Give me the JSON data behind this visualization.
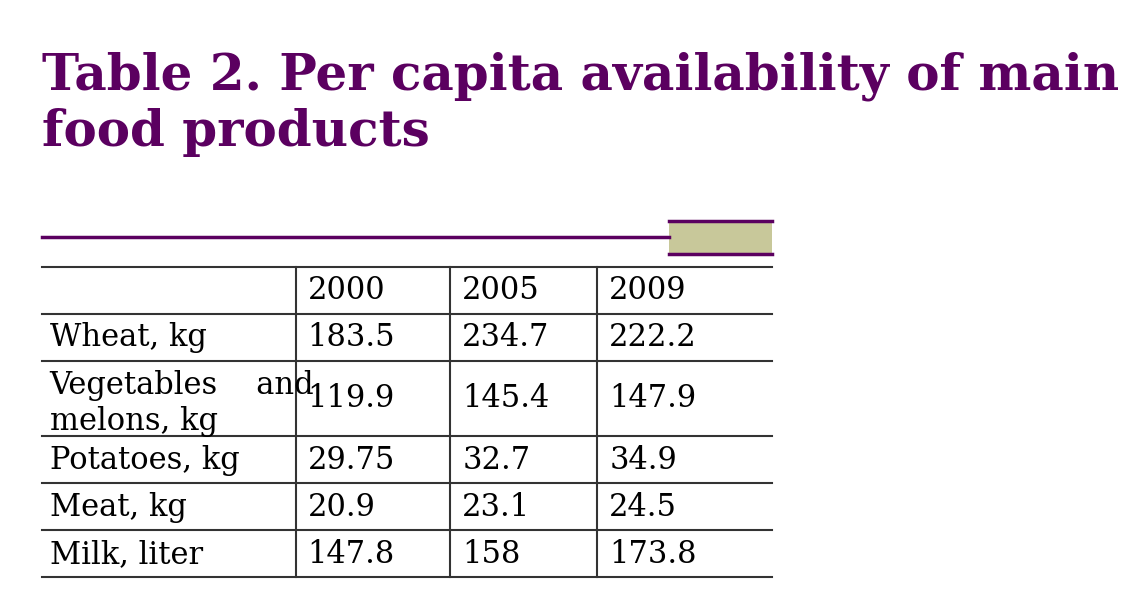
{
  "title": "Table 2. Per capita availability of main\nfood products",
  "title_color": "#5B0060",
  "title_fontsize": 36,
  "background_color": "#ffffff",
  "separator_line_color": "#5B0060",
  "decorator_color": "#C8C89A",
  "columns": [
    "",
    "2000",
    "2005",
    "2009"
  ],
  "rows": [
    [
      "Wheat, kg",
      "183.5",
      "234.7",
      "222.2"
    ],
    [
      "Vegetables    and\nmelons, kg",
      "119.9",
      "145.4",
      "147.9"
    ],
    [
      "Potatoes, kg",
      "29.75",
      "32.7",
      "34.9"
    ],
    [
      "Meat, kg",
      "20.9",
      "23.1",
      "24.5"
    ],
    [
      "Milk, liter",
      "147.8",
      "158",
      "173.8"
    ]
  ],
  "table_text_color": "#000000",
  "table_fontsize": 22,
  "header_fontsize": 22
}
